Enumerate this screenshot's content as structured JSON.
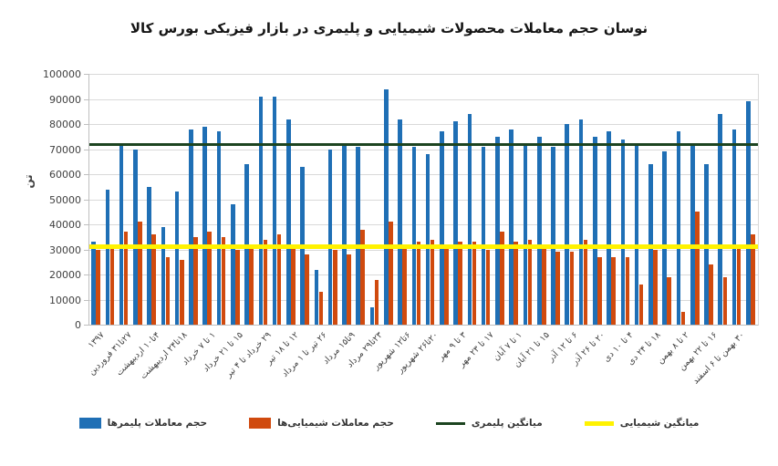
{
  "title": "نوسان حجم معاملات محصولات شیمیایی و پلیمری در بازار فیزیکی بورس کالا",
  "y_axis": {
    "title": "تن",
    "ticks": [
      "100000",
      "90000",
      "80000",
      "70000",
      "60000",
      "50000",
      "40000",
      "30000",
      "20000",
      "10000",
      "0"
    ]
  },
  "colors": {
    "polymer_bar": "#1F6FB5",
    "chemical_bar": "#D04A0E",
    "polymer_avg_line": "#1C4420",
    "chemical_avg_line": "#FFF200",
    "gridline": "#D9D9D9",
    "axis": "#BFBFBF",
    "text": "#404040"
  },
  "chart_data": {
    "type": "bar",
    "title": "نوسان حجم معاملات محصولات شیمیایی و پلیمری در بازار فیزیکی بورس کالا",
    "xlabel": "",
    "ylabel": "تن",
    "ylim": [
      0,
      100000
    ],
    "ystep": 10000,
    "grid": true,
    "legend_position": "bottom",
    "categories": [
      "۱۳۹۷",
      "",
      "۲۷تا۳۱ فروردین",
      "",
      "۴تا۱۰ اردیبهشت",
      "",
      "۱۸تا۲۴ اردیبهشت",
      "",
      "۱ تا ۷ خرداد",
      "",
      "۱۵ تا ۲۱ خرداد",
      "",
      "۲۹ خرداد تا ۴ تیر",
      "",
      "۱۲ تا ۱۸ تیر",
      "",
      "۲۶ تیر تا ۱ مرداد",
      "",
      "۹تا۱۵ مرداد",
      "",
      "۲۳تا۲۹ مرداد",
      "",
      "۶تا۱۲ شهریور",
      "",
      "۲۰تا۲۶ شهریور",
      "",
      "۳ تا ۹ مهر",
      "",
      "۱۷ تا ۲۳ مهر",
      "",
      "۱ تا ۷ آبان",
      "",
      "۱۵ تا ۲۱ آبان",
      "",
      "۶ تا ۱۲ آذر",
      "",
      "۲۰ تا ۲۶ آذر",
      "",
      "۴ تا ۱۰ دی",
      "",
      "۱۸ تا ۲۴ دی",
      "",
      "۲ تا ۸ بهمن",
      "",
      "۱۶ تا ۲۲ بهمن",
      "",
      "۳۰ بهمن تا ۶ اسفند",
      ""
    ],
    "series": [
      {
        "name": "حجم معاملات پلیمرها",
        "color": "#1F6FB5",
        "values": [
          33000,
          54000,
          72000,
          70000,
          55000,
          39000,
          53000,
          78000,
          79000,
          77000,
          48000,
          64000,
          91000,
          91000,
          82000,
          63000,
          22000,
          70000,
          72000,
          71000,
          7000,
          94000,
          82000,
          71000,
          68000,
          77000,
          81000,
          84000,
          71000,
          75000,
          78000,
          72000,
          75000,
          71000,
          80000,
          82000,
          75000,
          77000,
          74000,
          72000,
          64000,
          69000,
          77000,
          72000,
          64000,
          84000,
          78000,
          89000
        ]
      },
      {
        "name": "حجم معاملات شیمیایی‌ها",
        "color": "#D04A0E",
        "values": [
          30000,
          31000,
          37000,
          41000,
          36000,
          27000,
          26000,
          35000,
          37000,
          35000,
          30000,
          31000,
          34000,
          36000,
          31000,
          28000,
          13000,
          30000,
          28000,
          38000,
          18000,
          41000,
          32000,
          33000,
          34000,
          32000,
          33000,
          33000,
          30000,
          37000,
          33000,
          34000,
          32000,
          29000,
          29000,
          34000,
          27000,
          27000,
          27000,
          16000,
          30000,
          19000,
          5000,
          45000,
          24000,
          19000,
          32000,
          36000
        ]
      }
    ],
    "lines": [
      {
        "name": "میانگین پلیمری",
        "color": "#1C4420",
        "value": 72000,
        "thickness": 3
      },
      {
        "name": "میانگین شیمیایی",
        "color": "#FFF200",
        "value": 31000,
        "thickness": 5
      }
    ]
  },
  "legend": {
    "items": [
      {
        "label": "حجم معاملات پلیمرها",
        "color": "#1F6FB5",
        "marker": "bar"
      },
      {
        "label": "حجم معاملات شیمیایی‌ها",
        "color": "#D04A0E",
        "marker": "bar"
      },
      {
        "label": "میانگین پلیمری",
        "color": "#1C4420",
        "marker": "line"
      },
      {
        "label": "میانگین شیمیایی",
        "color": "#FFF200",
        "marker": "line"
      }
    ]
  }
}
